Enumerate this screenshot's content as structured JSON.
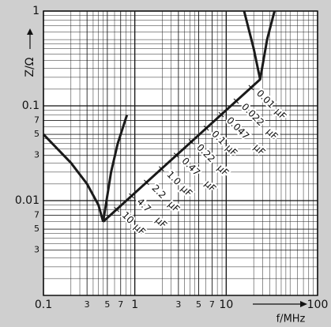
{
  "chart_data": {
    "type": "line",
    "x_label": "f/MHz",
    "y_label": "Z/Ω",
    "log_x": true,
    "log_y": true,
    "grid": true,
    "xlim": [
      0.1,
      100
    ],
    "ylim": [
      0.001,
      1
    ],
    "xticks": [
      0.1,
      {
        "value": 0.3,
        "label": "3"
      },
      {
        "value": 0.5,
        "label": "5"
      },
      {
        "value": 0.7,
        "label": "7"
      },
      1,
      3,
      5,
      7,
      10,
      100
    ],
    "yticks": [
      1,
      0.1,
      {
        "value": 0.07,
        "label": "7"
      },
      {
        "value": 0.05,
        "label": "5"
      },
      {
        "value": 0.03,
        "label": "3"
      },
      0.01,
      {
        "value": 0.007,
        "label": "7"
      },
      {
        "value": 0.005,
        "label": "5"
      },
      {
        "value": 0.003,
        "label": "3"
      }
    ],
    "series": [
      {
        "color": "#1a1a1a",
        "x": [
          0.1,
          0.2,
          0.3,
          0.4,
          0.45
        ],
        "values": [
          0.05,
          0.025,
          0.015,
          0.009,
          0.006
        ]
      },
      {
        "color": "#1a1a1a",
        "x": [
          0.45,
          0.55,
          0.65,
          0.82
        ],
        "values": [
          0.006,
          0.02,
          0.04,
          0.08
        ]
      },
      {
        "color": "#1a1a1a",
        "x": [
          0.45,
          23.5
        ],
        "values": [
          0.006,
          0.19
        ]
      },
      {
        "color": "#1a1a1a",
        "x": [
          15.7,
          20,
          23.5,
          28,
          33.8
        ],
        "values": [
          1,
          0.4,
          0.19,
          0.5,
          1
        ]
      }
    ],
    "capacitors": [
      "0.01",
      "0.022",
      "0.047",
      "0.1",
      "0.22",
      "0.47",
      "1.0",
      "2.2",
      "4.7",
      "10"
    ],
    "capacitor_unit": "µF"
  }
}
